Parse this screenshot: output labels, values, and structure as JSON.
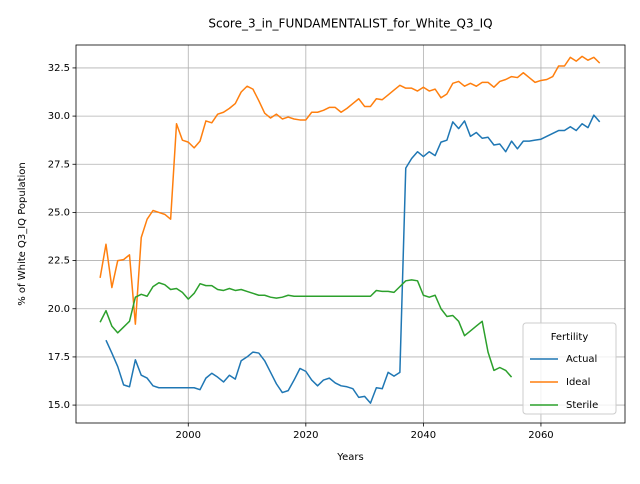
{
  "chart_data": {
    "type": "line",
    "title": "Score_3_in_FUNDAMENTALIST_for_White_Q3_IQ",
    "xlabel": "Years",
    "ylabel": "% of White Q3_IQ Population",
    "legend_title": "Fertility",
    "legend": "lower right",
    "grid": true,
    "xlim": [
      1980.9,
      2074.3
    ],
    "ylim": [
      14.07,
      33.69
    ],
    "xticks": [
      2000,
      2020,
      2040,
      2060
    ],
    "yticks": [
      {
        "value": 15,
        "label": "15.0"
      },
      17.5,
      {
        "value": 20,
        "label": "20.0"
      },
      22.5,
      {
        "value": 25,
        "label": "25.0"
      },
      27.5,
      {
        "value": 30,
        "label": "30.0"
      },
      32.5
    ],
    "x": [
      1985,
      1986,
      1987,
      1988,
      1989,
      1990,
      1991,
      1992,
      1993,
      1994,
      1995,
      1996,
      1997,
      1998,
      1999,
      2000,
      2001,
      2002,
      2003,
      2004,
      2005,
      2006,
      2007,
      2008,
      2009,
      2010,
      2011,
      2012,
      2013,
      2014,
      2015,
      2016,
      2017,
      2018,
      2019,
      2020,
      2021,
      2022,
      2023,
      2024,
      2025,
      2026,
      2027,
      2028,
      2029,
      2030,
      2031,
      2032,
      2033,
      2034,
      2035,
      2036,
      2037,
      2038,
      2039,
      2040,
      2041,
      2042,
      2043,
      2044,
      2045,
      2046,
      2047,
      2048,
      2049,
      2050,
      2051,
      2052,
      2053,
      2054,
      2055,
      2056,
      2057,
      2058,
      2059,
      2060,
      2061,
      2062,
      2063,
      2064,
      2065,
      2066,
      2067,
      2068,
      2069,
      2070
    ],
    "series": [
      {
        "name": "Actual",
        "color": "#1f77b4",
        "values": [
          null,
          18.37,
          17.7,
          17.0,
          16.05,
          15.95,
          17.35,
          16.55,
          16.4,
          16.0,
          15.9,
          15.9,
          15.9,
          15.9,
          15.9,
          15.9,
          15.9,
          15.8,
          16.4,
          16.65,
          16.45,
          16.2,
          16.55,
          16.35,
          17.3,
          17.5,
          17.75,
          17.7,
          17.3,
          16.7,
          16.1,
          15.65,
          15.75,
          16.3,
          16.9,
          16.75,
          16.3,
          16.0,
          16.3,
          16.4,
          16.15,
          16.0,
          15.95,
          15.85,
          15.4,
          15.45,
          15.1,
          15.9,
          15.85,
          16.7,
          16.5,
          16.7,
          27.3,
          27.8,
          28.15,
          27.9,
          28.15,
          27.95,
          28.65,
          28.75,
          29.7,
          29.35,
          29.75,
          28.95,
          29.15,
          28.85,
          28.9,
          28.5,
          28.55,
          28.15,
          28.7,
          28.3,
          28.7,
          28.7,
          28.75,
          28.8,
          28.95,
          29.1,
          29.25,
          29.25,
          29.45,
          29.25,
          29.6,
          29.4,
          30.05,
          29.7
        ]
      },
      {
        "name": "Ideal",
        "color": "#ff7f0e",
        "values": [
          21.6,
          23.35,
          21.1,
          22.5,
          22.55,
          22.8,
          19.2,
          23.7,
          24.65,
          25.1,
          25.0,
          24.9,
          24.65,
          29.6,
          28.75,
          28.65,
          28.35,
          28.7,
          29.75,
          29.65,
          30.1,
          30.2,
          30.4,
          30.65,
          31.25,
          31.55,
          31.4,
          30.8,
          30.15,
          29.9,
          30.1,
          29.85,
          29.95,
          29.85,
          29.8,
          29.8,
          30.2,
          30.2,
          30.3,
          30.45,
          30.45,
          30.2,
          30.4,
          30.65,
          30.9,
          30.5,
          30.5,
          30.9,
          30.85,
          31.1,
          31.35,
          31.6,
          31.45,
          31.45,
          31.3,
          31.5,
          31.3,
          31.4,
          30.95,
          31.15,
          31.7,
          31.8,
          31.55,
          31.7,
          31.55,
          31.75,
          31.75,
          31.5,
          31.8,
          31.9,
          32.05,
          32.0,
          32.25,
          32.0,
          31.75,
          31.85,
          31.9,
          32.05,
          32.6,
          32.6,
          33.05,
          32.85,
          33.1,
          32.9,
          33.05,
          32.75
        ]
      },
      {
        "name": "Sterile",
        "color": "#2ca02c",
        "values": [
          19.3,
          19.9,
          19.1,
          18.75,
          19.05,
          19.35,
          20.6,
          20.75,
          20.65,
          21.15,
          21.35,
          21.25,
          21.0,
          21.05,
          20.85,
          20.5,
          20.8,
          21.3,
          21.2,
          21.2,
          21.0,
          20.95,
          21.05,
          20.95,
          21.0,
          20.9,
          20.8,
          20.7,
          20.7,
          20.6,
          20.55,
          20.6,
          20.7,
          20.65,
          20.65,
          20.65,
          20.65,
          20.65,
          20.65,
          20.65,
          20.65,
          20.65,
          20.65,
          20.65,
          20.65,
          20.65,
          20.65,
          20.95,
          20.9,
          20.9,
          20.85,
          21.15,
          21.45,
          21.5,
          21.45,
          20.7,
          20.6,
          20.7,
          20.0,
          19.6,
          19.65,
          19.35,
          18.6,
          18.85,
          19.1,
          19.35,
          17.75,
          16.8,
          16.95,
          16.8,
          16.45,
          null,
          null,
          null,
          null,
          null,
          null,
          null,
          null,
          null,
          null,
          null,
          null,
          null,
          null,
          null
        ]
      }
    ]
  }
}
